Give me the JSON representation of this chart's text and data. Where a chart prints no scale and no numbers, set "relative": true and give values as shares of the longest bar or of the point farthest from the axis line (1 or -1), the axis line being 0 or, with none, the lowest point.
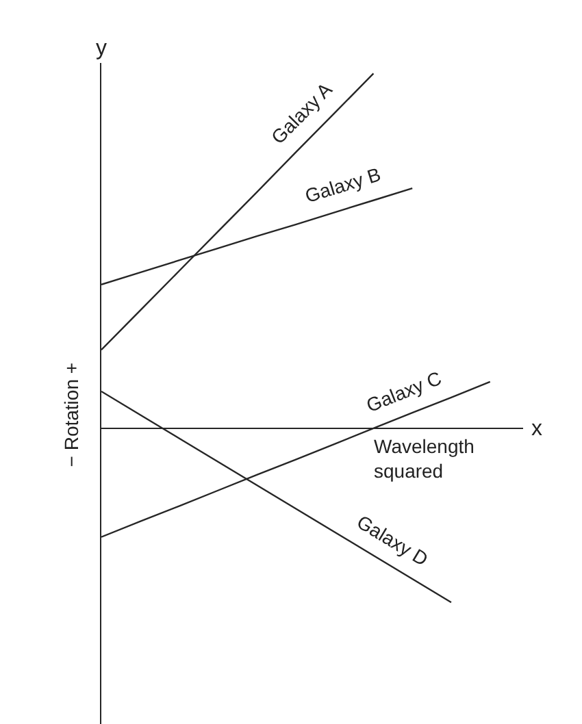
{
  "chart_data": {
    "type": "line",
    "relative": true,
    "xlabel": "Wavelength squared",
    "ylabel": "− Rotation +",
    "annotations": [
      "y",
      "x"
    ],
    "categories": [
      null,
      null,
      null,
      null,
      null,
      null,
      null,
      null,
      null,
      null,
      null
    ],
    "series": [
      {
        "name": "Galaxy A",
        "color": "#262626",
        "values": [
          0.222,
          0.333,
          0.444,
          0.555,
          0.666,
          0.778,
          0.889,
          1,
          null,
          null,
          null
        ]
      },
      {
        "name": "Galaxy B",
        "color": "#262626",
        "values": [
          0.406,
          0.44,
          0.474,
          0.508,
          0.542,
          0.575,
          0.609,
          0.643,
          0.677,
          null,
          null
        ]
      },
      {
        "name": "Galaxy C",
        "color": "#262626",
        "values": [
          -0.305,
          -0.261,
          -0.218,
          -0.174,
          -0.13,
          -0.087,
          -0.043,
          0.001,
          0.045,
          0.088,
          0.132
        ]
      },
      {
        "name": "Galaxy D",
        "color": "#262626",
        "values": [
          0.105,
          0.039,
          -0.027,
          -0.093,
          -0.159,
          -0.225,
          -0.291,
          -0.357,
          -0.423,
          -0.489,
          null
        ]
      }
    ]
  }
}
